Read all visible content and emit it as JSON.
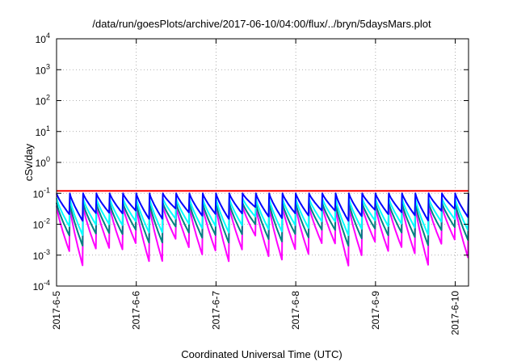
{
  "chart_data": {
    "type": "line",
    "title": "/data/run/goesPlots/archive/2017-06-10/04:00/flux/../bryn/5daysMars.plot",
    "xlabel": "Coordinated Universal Time (UTC)",
    "ylabel": "cSv/day",
    "yscale": "log",
    "ylim": [
      0.0001,
      10000
    ],
    "xlim": [
      "2017-06-05T00:00",
      "2017-06-10T04:00"
    ],
    "grid": true,
    "legend": "none",
    "y_ticks": [
      {
        "base": "10",
        "exp": "-4",
        "value": 0.0001
      },
      {
        "base": "10",
        "exp": "-3",
        "value": 0.001
      },
      {
        "base": "10",
        "exp": "-2",
        "value": 0.01
      },
      {
        "base": "10",
        "exp": "-1",
        "value": 0.1
      },
      {
        "base": "10",
        "exp": "0",
        "value": 1
      },
      {
        "base": "10",
        "exp": "1",
        "value": 10
      },
      {
        "base": "10",
        "exp": "2",
        "value": 100
      },
      {
        "base": "10",
        "exp": "3",
        "value": 1000
      },
      {
        "base": "10",
        "exp": "4",
        "value": 10000
      }
    ],
    "x_ticks": [
      "2017-6-5",
      "2017-6-6",
      "2017-6-7",
      "2017-6-8",
      "2017-6-9",
      "2017-6-10"
    ],
    "series": [
      {
        "color": "#ff0000",
        "sawtooth": {
          "period_hours": 4,
          "peak": 0.12,
          "trough": 0.12
        }
      },
      {
        "color": "#0000ff",
        "sawtooth": {
          "period_hours": 4,
          "peak": 0.1,
          "trough": 0.02
        }
      },
      {
        "color": "#00ffff",
        "sawtooth": {
          "period_hours": 4,
          "peak": 0.07,
          "trough": 0.008
        }
      },
      {
        "color": "#008080",
        "sawtooth": {
          "period_hours": 4,
          "peak": 0.05,
          "trough": 0.004
        }
      },
      {
        "color": "#ff00ff",
        "sawtooth": {
          "period_hours": 4,
          "peak": 0.04,
          "trough": 0.0012
        }
      }
    ]
  }
}
